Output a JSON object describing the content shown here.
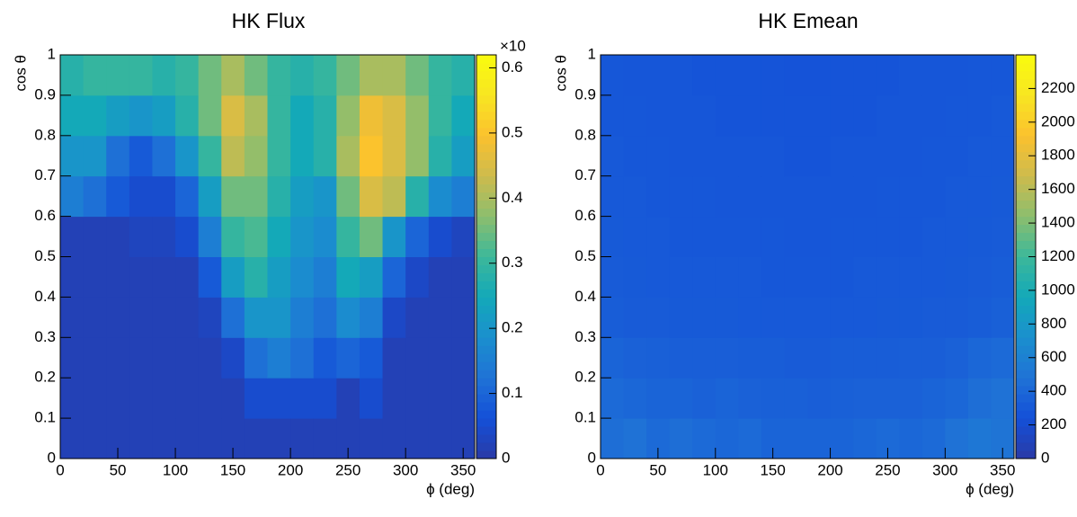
{
  "chart_data": [
    {
      "type": "heatmap",
      "title": "HK Flux",
      "xlabel": "ϕ (deg)",
      "ylabel": "cos θ",
      "xlim": [
        0,
        360
      ],
      "xticks": [
        0,
        50,
        100,
        150,
        200,
        250,
        300,
        350
      ],
      "ylim": [
        0,
        1
      ],
      "yticks": [
        0,
        0.1,
        0.2,
        0.3,
        0.4,
        0.5,
        0.6,
        0.7,
        0.8,
        0.9,
        1
      ],
      "zlim": [
        0,
        0.62
      ],
      "zticks": [
        0,
        0.1,
        0.2,
        0.3,
        0.4,
        0.5,
        0.6
      ],
      "z_exponent_label": "×10",
      "colorscale": [
        "#2a3aa6",
        "#1450d8",
        "#1f72d6",
        "#1b8fce",
        "#13a8b9",
        "#3cb89a",
        "#8cbe6e",
        "#cdbb4d",
        "#fbc12e",
        "#f8e622",
        "#f9fb0e"
      ],
      "z": [
        [
          0.02,
          0.02,
          0.02,
          0.02,
          0.02,
          0.02,
          0.02,
          0.02,
          0.02,
          0.02,
          0.02,
          0.02,
          0.02,
          0.02,
          0.02,
          0.02,
          0.02,
          0.02
        ],
        [
          0.02,
          0.02,
          0.02,
          0.02,
          0.02,
          0.02,
          0.02,
          0.02,
          0.05,
          0.05,
          0.05,
          0.05,
          0.02,
          0.05,
          0.02,
          0.02,
          0.02,
          0.02
        ],
        [
          0.02,
          0.02,
          0.02,
          0.02,
          0.02,
          0.02,
          0.02,
          0.04,
          0.12,
          0.15,
          0.12,
          0.08,
          0.1,
          0.08,
          0.02,
          0.02,
          0.02,
          0.02
        ],
        [
          0.02,
          0.02,
          0.02,
          0.02,
          0.02,
          0.02,
          0.03,
          0.12,
          0.2,
          0.2,
          0.15,
          0.12,
          0.18,
          0.15,
          0.04,
          0.02,
          0.02,
          0.02
        ],
        [
          0.02,
          0.02,
          0.02,
          0.02,
          0.02,
          0.02,
          0.08,
          0.22,
          0.28,
          0.22,
          0.18,
          0.15,
          0.25,
          0.22,
          0.1,
          0.04,
          0.02,
          0.02
        ],
        [
          0.02,
          0.02,
          0.02,
          0.03,
          0.03,
          0.05,
          0.15,
          0.3,
          0.32,
          0.25,
          0.2,
          0.18,
          0.3,
          0.35,
          0.2,
          0.1,
          0.05,
          0.03
        ],
        [
          0.15,
          0.12,
          0.08,
          0.05,
          0.05,
          0.1,
          0.22,
          0.35,
          0.35,
          0.28,
          0.22,
          0.2,
          0.35,
          0.45,
          0.42,
          0.28,
          0.18,
          0.15
        ],
        [
          0.2,
          0.2,
          0.12,
          0.08,
          0.12,
          0.2,
          0.3,
          0.42,
          0.38,
          0.3,
          0.25,
          0.28,
          0.4,
          0.5,
          0.45,
          0.38,
          0.28,
          0.22
        ],
        [
          0.25,
          0.25,
          0.22,
          0.2,
          0.22,
          0.28,
          0.35,
          0.45,
          0.4,
          0.3,
          0.25,
          0.28,
          0.38,
          0.48,
          0.45,
          0.38,
          0.3,
          0.25
        ],
        [
          0.28,
          0.3,
          0.3,
          0.3,
          0.28,
          0.3,
          0.35,
          0.4,
          0.35,
          0.3,
          0.28,
          0.3,
          0.35,
          0.4,
          0.4,
          0.35,
          0.3,
          0.28
        ]
      ]
    },
    {
      "type": "heatmap",
      "title": "HK Emean",
      "xlabel": "ϕ (deg)",
      "ylabel": "cos θ",
      "xlim": [
        0,
        360
      ],
      "xticks": [
        0,
        50,
        100,
        150,
        200,
        250,
        300,
        350
      ],
      "ylim": [
        0,
        1
      ],
      "yticks": [
        0,
        0.1,
        0.2,
        0.3,
        0.4,
        0.5,
        0.6,
        0.7,
        0.8,
        0.9,
        1
      ],
      "zlim": [
        0,
        2400
      ],
      "zticks": [
        0,
        200,
        400,
        600,
        800,
        1000,
        1200,
        1400,
        1600,
        1800,
        2000,
        2200
      ],
      "colorscale": [
        "#2a3aa6",
        "#1450d8",
        "#1f72d6",
        "#1b8fce",
        "#13a8b9",
        "#3cb89a",
        "#8cbe6e",
        "#cdbb4d",
        "#fbc12e",
        "#f8e622",
        "#f9fb0e"
      ],
      "z": [
        [
          450,
          480,
          420,
          450,
          420,
          400,
          420,
          380,
          380,
          380,
          380,
          400,
          420,
          400,
          420,
          480,
          520,
          500
        ],
        [
          420,
          400,
          380,
          380,
          360,
          380,
          360,
          350,
          350,
          340,
          350,
          360,
          360,
          360,
          380,
          400,
          450,
          480
        ],
        [
          380,
          360,
          350,
          340,
          340,
          340,
          330,
          330,
          320,
          320,
          330,
          330,
          330,
          340,
          340,
          360,
          400,
          420
        ],
        [
          330,
          320,
          320,
          310,
          310,
          310,
          300,
          300,
          300,
          300,
          300,
          300,
          310,
          310,
          320,
          320,
          330,
          350
        ],
        [
          320,
          310,
          300,
          300,
          300,
          300,
          300,
          290,
          290,
          290,
          290,
          300,
          300,
          300,
          300,
          310,
          320,
          330
        ],
        [
          310,
          300,
          300,
          290,
          290,
          290,
          290,
          290,
          280,
          280,
          290,
          290,
          290,
          290,
          300,
          300,
          310,
          320
        ],
        [
          300,
          300,
          290,
          290,
          290,
          280,
          280,
          280,
          280,
          280,
          280,
          280,
          290,
          290,
          290,
          300,
          300,
          310
        ],
        [
          300,
          290,
          290,
          280,
          280,
          280,
          280,
          280,
          270,
          270,
          280,
          280,
          280,
          280,
          290,
          290,
          300,
          300
        ],
        [
          290,
          290,
          280,
          280,
          280,
          270,
          270,
          270,
          270,
          270,
          270,
          270,
          280,
          280,
          280,
          290,
          290,
          300
        ],
        [
          290,
          280,
          280,
          280,
          270,
          270,
          270,
          270,
          260,
          260,
          270,
          270,
          270,
          280,
          280,
          280,
          290,
          290
        ]
      ]
    }
  ]
}
